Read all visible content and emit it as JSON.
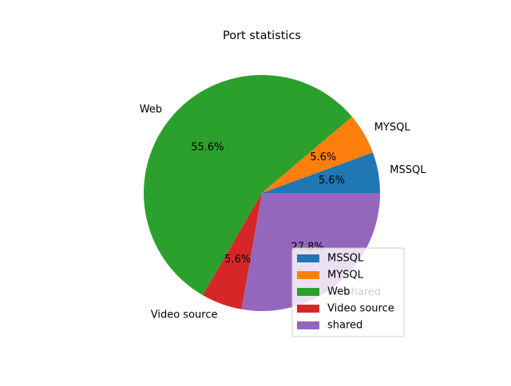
{
  "chart_data": {
    "type": "pie",
    "title": "Port statistics",
    "categories": [
      "MSSQL",
      "MYSQL",
      "Web",
      "Video source",
      "shared"
    ],
    "values": [
      5.6,
      5.6,
      55.6,
      5.6,
      27.8
    ],
    "labels": [
      "5.6%",
      "5.6%",
      "55.6%",
      "5.6%",
      "27.8%"
    ],
    "colors": [
      "#1f77b4",
      "#ff7f0e",
      "#2ca02c",
      "#d62728",
      "#9467bd"
    ],
    "start_angle_deg": 0,
    "direction": "counterclockwise",
    "legend": {
      "placement": "lower-right",
      "entries": [
        "MSSQL",
        "MYSQL",
        "Web",
        "Video source",
        "shared"
      ]
    }
  }
}
